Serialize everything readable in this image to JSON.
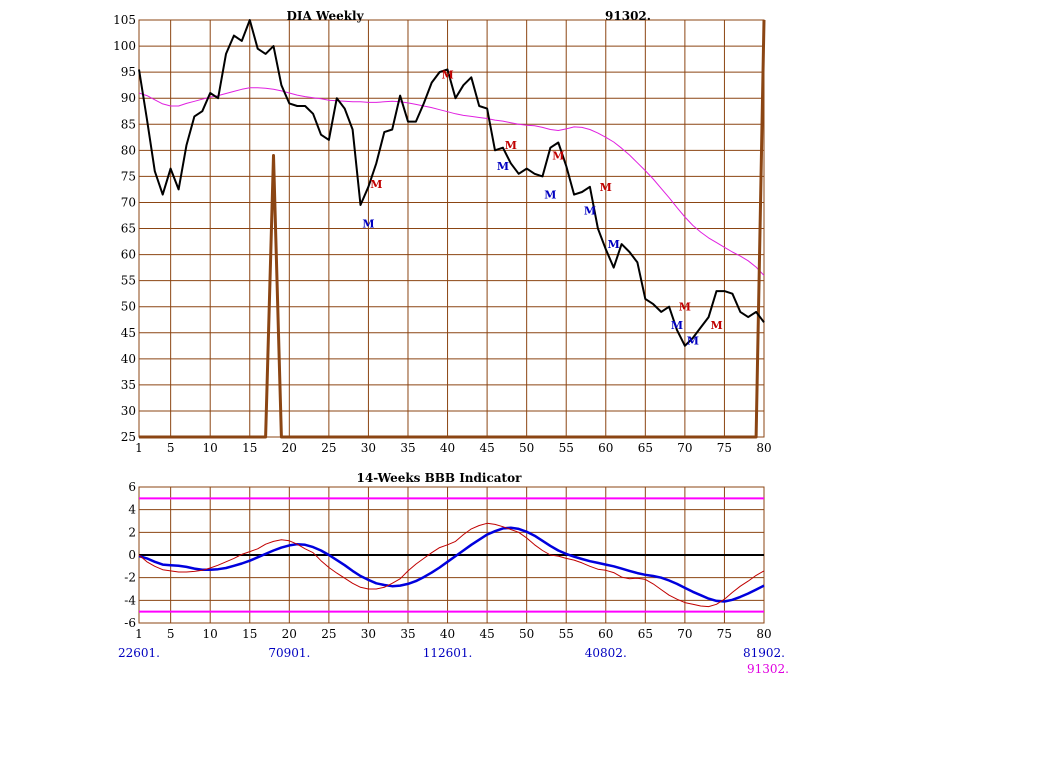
{
  "chart_data": [
    {
      "type": "line",
      "title": "DIA Weekly",
      "date_label": "91302.",
      "x": [
        1,
        2,
        3,
        4,
        5,
        6,
        7,
        8,
        9,
        10,
        11,
        12,
        13,
        14,
        15,
        16,
        17,
        18,
        19,
        20,
        21,
        22,
        23,
        24,
        25,
        26,
        27,
        28,
        29,
        30,
        31,
        32,
        33,
        34,
        35,
        36,
        37,
        38,
        39,
        40,
        41,
        42,
        43,
        44,
        45,
        46,
        47,
        48,
        49,
        50,
        51,
        52,
        53,
        54,
        55,
        56,
        57,
        58,
        59,
        60,
        61,
        62,
        63,
        64,
        65,
        66,
        67,
        68,
        69,
        70,
        71,
        72,
        73,
        74,
        75,
        76,
        77,
        78,
        79,
        80
      ],
      "xticks": [
        1,
        5,
        10,
        15,
        20,
        25,
        30,
        35,
        40,
        45,
        50,
        55,
        60,
        65,
        70,
        75,
        80
      ],
      "yticks": [
        25,
        30,
        35,
        40,
        45,
        50,
        55,
        60,
        65,
        70,
        75,
        80,
        85,
        90,
        95,
        100,
        105
      ],
      "xlim": [
        1,
        80
      ],
      "ylim": [
        25,
        105
      ],
      "grid": true,
      "series": [
        {
          "role": "price",
          "color": "#000000",
          "values": [
            95.5,
            86,
            76,
            71.5,
            76.5,
            72.5,
            81,
            86.5,
            87.5,
            91,
            90,
            98.5,
            102,
            101,
            105,
            99.5,
            98.5,
            100,
            92.5,
            89,
            88.5,
            88.5,
            87,
            83,
            82,
            90,
            88,
            84,
            69.5,
            73,
            77.5,
            83.5,
            84,
            90.5,
            85.5,
            85.5,
            89,
            93,
            95,
            95.5,
            90,
            92.5,
            94,
            88.5,
            88,
            80,
            80.5,
            77.5,
            75.5,
            76.5,
            75.5,
            75,
            80.5,
            81.5,
            77,
            71.5,
            72,
            73,
            65,
            61,
            57.5,
            62,
            60.5,
            58.5,
            51.5,
            50.5,
            49,
            50,
            45.5,
            42.5,
            44,
            46,
            48,
            53,
            53,
            52.5,
            49,
            48,
            49,
            47
          ]
        },
        {
          "role": "moving-average",
          "color": "#e020e0",
          "values": [
            91,
            90.5,
            89.7,
            88.9,
            88.5,
            88.5,
            89,
            89.4,
            89.8,
            90.2,
            90.5,
            90.9,
            91.3,
            91.7,
            92,
            92,
            91.9,
            91.7,
            91.4,
            91,
            90.6,
            90.3,
            90.1,
            89.9,
            89.6,
            89.5,
            89.4,
            89.3,
            89.3,
            89.2,
            89.2,
            89.3,
            89.4,
            89.3,
            89.1,
            88.8,
            88.5,
            88.2,
            87.8,
            87.4,
            87,
            86.7,
            86.5,
            86.3,
            86.1,
            85.8,
            85.6,
            85.3,
            85,
            84.8,
            84.7,
            84.4,
            84,
            83.8,
            84.1,
            84.5,
            84.4,
            84,
            83.3,
            82.5,
            81.6,
            80.4,
            79.1,
            77.6,
            76.1,
            74.5,
            72.7,
            70.9,
            69,
            67.2,
            65.6,
            64.3,
            63.2,
            62.3,
            61.4,
            60.5,
            59.7,
            58.8,
            57.6,
            56
          ]
        },
        {
          "role": "overlay",
          "color": "#8b4513",
          "values": [
            25,
            25,
            25,
            25,
            25,
            25,
            25,
            25,
            25,
            25,
            25,
            25,
            25,
            25,
            25,
            25,
            25,
            79,
            25,
            25,
            25,
            25,
            25,
            25,
            25,
            25,
            25,
            25,
            25,
            25,
            25,
            25,
            25,
            25,
            25,
            25,
            25,
            25,
            25,
            25,
            25,
            25,
            25,
            25,
            25,
            25,
            25,
            25,
            25,
            25,
            25,
            25,
            25,
            25,
            25,
            25,
            25,
            25,
            25,
            25,
            25,
            25,
            25,
            25,
            25,
            25,
            25,
            25,
            25,
            25,
            25,
            25,
            25,
            25,
            25,
            25,
            25,
            25,
            25,
            105
          ]
        }
      ],
      "markers": [
        {
          "x": 30,
          "y": 66,
          "label": "M",
          "color": "#0000c0"
        },
        {
          "x": 31,
          "y": 73.5,
          "label": "M",
          "color": "#c00000"
        },
        {
          "x": 40,
          "y": 94.5,
          "label": "M",
          "color": "#c00000"
        },
        {
          "x": 47,
          "y": 77,
          "label": "M",
          "color": "#0000c0"
        },
        {
          "x": 48,
          "y": 81,
          "label": "M",
          "color": "#c00000"
        },
        {
          "x": 53,
          "y": 71.5,
          "label": "M",
          "color": "#0000c0"
        },
        {
          "x": 54,
          "y": 79,
          "label": "M",
          "color": "#c00000"
        },
        {
          "x": 58,
          "y": 68.5,
          "label": "M",
          "color": "#0000c0"
        },
        {
          "x": 60,
          "y": 73,
          "label": "M",
          "color": "#c00000"
        },
        {
          "x": 61,
          "y": 62,
          "label": "M",
          "color": "#0000c0"
        },
        {
          "x": 69,
          "y": 46.5,
          "label": "M",
          "color": "#0000c0"
        },
        {
          "x": 70,
          "y": 50,
          "label": "M",
          "color": "#c00000"
        },
        {
          "x": 71,
          "y": 43.5,
          "label": "M",
          "color": "#0000c0"
        },
        {
          "x": 74,
          "y": 46.5,
          "label": "M",
          "color": "#c00000"
        }
      ]
    },
    {
      "type": "line",
      "title": "14-Weeks BBB Indicator",
      "x": [
        1,
        2,
        3,
        4,
        5,
        6,
        7,
        8,
        9,
        10,
        11,
        12,
        13,
        14,
        15,
        16,
        17,
        18,
        19,
        20,
        21,
        22,
        23,
        24,
        25,
        26,
        27,
        28,
        29,
        30,
        31,
        32,
        33,
        34,
        35,
        36,
        37,
        38,
        39,
        40,
        41,
        42,
        43,
        44,
        45,
        46,
        47,
        48,
        49,
        50,
        51,
        52,
        53,
        54,
        55,
        56,
        57,
        58,
        59,
        60,
        61,
        62,
        63,
        64,
        65,
        66,
        67,
        68,
        69,
        70,
        71,
        72,
        73,
        74,
        75,
        76,
        77,
        78,
        79,
        80
      ],
      "xticks": [
        1,
        5,
        10,
        15,
        20,
        25,
        30,
        35,
        40,
        45,
        50,
        55,
        60,
        65,
        70,
        75,
        80
      ],
      "yticks": [
        -6,
        -4,
        -2,
        0,
        2,
        4,
        6
      ],
      "xlim": [
        1,
        80
      ],
      "ylim": [
        -6,
        6
      ],
      "grid": true,
      "reference_lines": [
        {
          "y": 5,
          "color": "#ff00ff"
        },
        {
          "y": -5,
          "color": "#ff00ff"
        },
        {
          "y": 0,
          "color": "#000000"
        }
      ],
      "series": [
        {
          "role": "indicator-smooth",
          "color": "#0000dd",
          "values": [
            -0.1,
            -0.3,
            -0.6,
            -0.85,
            -0.9,
            -0.95,
            -1.05,
            -1.2,
            -1.3,
            -1.3,
            -1.25,
            -1.15,
            -0.95,
            -0.75,
            -0.5,
            -0.2,
            0.1,
            0.4,
            0.65,
            0.85,
            0.95,
            0.9,
            0.7,
            0.4,
            0,
            -0.45,
            -0.9,
            -1.4,
            -1.85,
            -2.2,
            -2.5,
            -2.65,
            -2.75,
            -2.7,
            -2.55,
            -2.3,
            -1.95,
            -1.55,
            -1.1,
            -0.6,
            -0.1,
            0.4,
            0.9,
            1.35,
            1.8,
            2.1,
            2.35,
            2.4,
            2.3,
            2.05,
            1.7,
            1.25,
            0.8,
            0.4,
            0.1,
            -0.15,
            -0.35,
            -0.55,
            -0.7,
            -0.85,
            -1,
            -1.2,
            -1.4,
            -1.6,
            -1.75,
            -1.85,
            -2,
            -2.25,
            -2.55,
            -2.9,
            -3.25,
            -3.55,
            -3.85,
            -4.05,
            -4.1,
            -3.95,
            -3.7,
            -3.4,
            -3.05,
            -2.7
          ]
        },
        {
          "role": "indicator-raw",
          "color": "#c00000",
          "values": [
            0,
            -0.6,
            -1,
            -1.3,
            -1.4,
            -1.5,
            -1.5,
            -1.45,
            -1.35,
            -1.15,
            -0.9,
            -0.6,
            -0.3,
            0.05,
            0.3,
            0.55,
            0.95,
            1.2,
            1.35,
            1.25,
            0.95,
            0.55,
            0.2,
            -0.5,
            -1.1,
            -1.6,
            -2.05,
            -2.5,
            -2.85,
            -3,
            -3,
            -2.85,
            -2.5,
            -2.1,
            -1.4,
            -0.8,
            -0.3,
            0.2,
            0.65,
            0.9,
            1.2,
            1.8,
            2.3,
            2.6,
            2.8,
            2.7,
            2.5,
            2.25,
            2,
            1.5,
            0.9,
            0.4,
            0,
            -0.1,
            -0.3,
            -0.45,
            -0.7,
            -1,
            -1.25,
            -1.35,
            -1.55,
            -1.95,
            -2.1,
            -2.05,
            -2.15,
            -2.55,
            -3.05,
            -3.55,
            -3.9,
            -4.2,
            -4.35,
            -4.5,
            -4.55,
            -4.35,
            -3.9,
            -3.3,
            -2.75,
            -2.3,
            -1.8,
            -1.4
          ]
        }
      ],
      "date_labels": [
        {
          "x": 1,
          "text": "22601.",
          "color": "#0000c0"
        },
        {
          "x": 20,
          "text": "70901.",
          "color": "#0000c0"
        },
        {
          "x": 40,
          "text": "112601.",
          "color": "#0000c0"
        },
        {
          "x": 60,
          "text": "40802.",
          "color": "#0000c0"
        },
        {
          "x": 80,
          "text": "81902.",
          "color": "#0000c0"
        },
        {
          "x": 80,
          "text": "91302.",
          "color": "#e000e0"
        }
      ]
    }
  ]
}
